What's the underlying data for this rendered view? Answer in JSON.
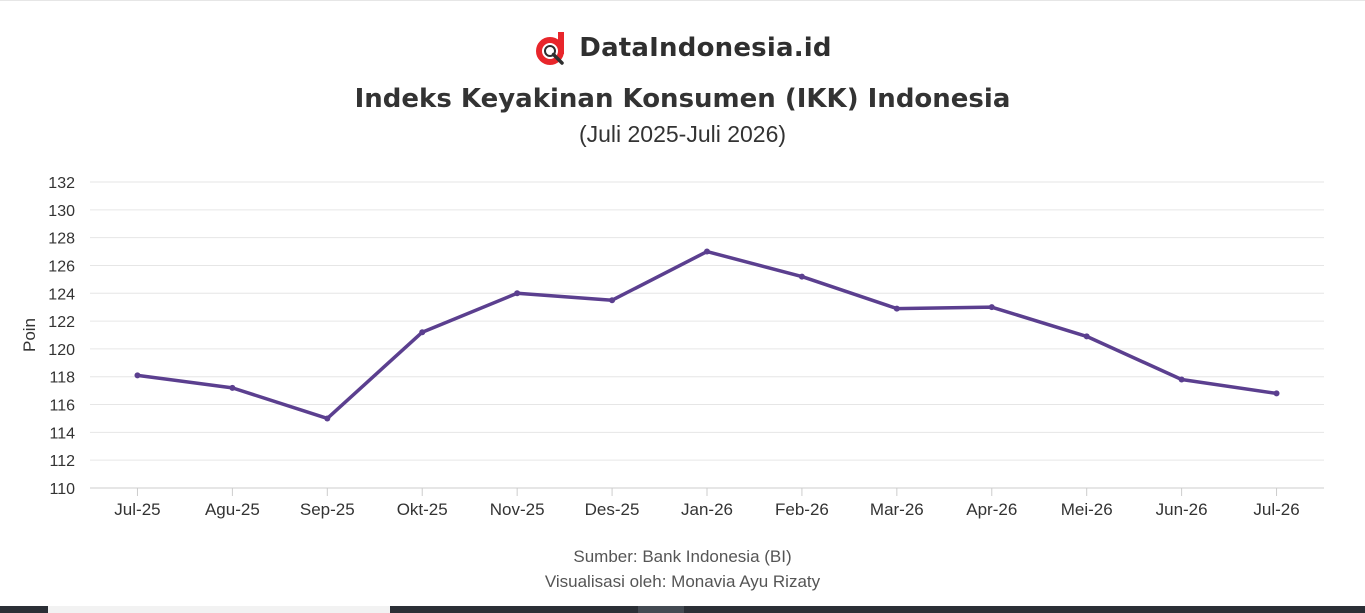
{
  "brand": {
    "name": "DataIndonesia.id",
    "accent": "#e8262b"
  },
  "chart_data": {
    "type": "line",
    "title": "Indeks Keyakinan Konsumen (IKK) Indonesia",
    "subtitle": "(Juli 2025-Juli 2026)",
    "xlabel": "",
    "ylabel": "Poin",
    "categories": [
      "Jul-25",
      "Agu-25",
      "Sep-25",
      "Okt-25",
      "Nov-25",
      "Des-25",
      "Jan-26",
      "Feb-26",
      "Mar-26",
      "Apr-26",
      "Mei-26",
      "Jun-26",
      "Jul-26"
    ],
    "series": [
      {
        "values": [
          118.1,
          117.2,
          115.0,
          121.2,
          124.0,
          123.5,
          127.0,
          125.2,
          122.9,
          123.0,
          120.9,
          117.8,
          116.8
        ],
        "color": "#5b3f8f"
      }
    ],
    "ylim": [
      110,
      132
    ],
    "yticks": [
      110,
      112,
      114,
      116,
      118,
      120,
      122,
      124,
      126,
      128,
      130,
      132
    ],
    "grid": true,
    "legend": "none"
  },
  "credits": {
    "source": "Sumber: Bank Indonesia (BI)",
    "author": "Visualisasi oleh: Monavia Ayu Rizaty"
  }
}
